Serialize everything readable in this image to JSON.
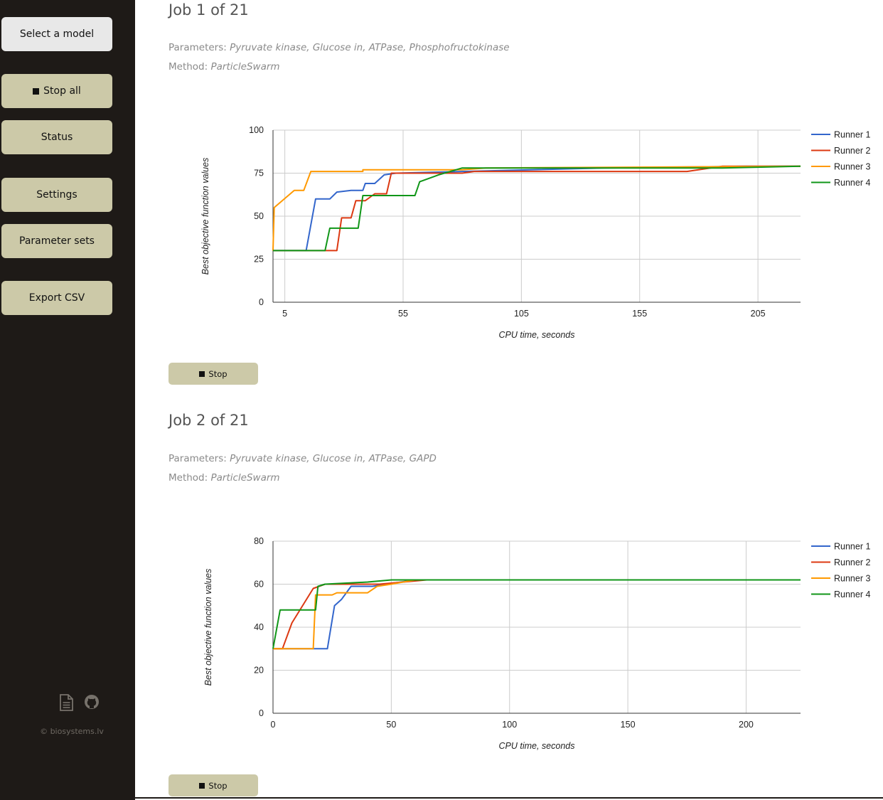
{
  "sidebar": {
    "select_model": "Select a model",
    "stop_all": "Stop all",
    "status": "Status",
    "settings": "Settings",
    "parameter_sets": "Parameter sets",
    "export_csv": "Export CSV",
    "icons": [
      "document-icon",
      "github-icon"
    ],
    "copyright": "© biosystems.lv"
  },
  "jobs": [
    {
      "title": "Job 1 of 21",
      "parameters_label": "Parameters:",
      "parameters": "Pyruvate kinase, Glucose in, ATPase, Phosphofructokinase",
      "method_label": "Method:",
      "method": "ParticleSwarm",
      "stop_label": "Stop"
    },
    {
      "title": "Job 2 of 21",
      "parameters_label": "Parameters:",
      "parameters": "Pyruvate kinase, Glucose in, ATPase, GAPD",
      "method_label": "Method:",
      "method": "ParticleSwarm",
      "stop_label": "Stop"
    }
  ],
  "chart_data": [
    {
      "type": "line",
      "xlabel": "CPU time, seconds",
      "ylabel": "Best objective function values",
      "xlim": [
        0,
        223
      ],
      "ylim": [
        0,
        100
      ],
      "xticks": [
        5,
        55,
        105,
        155,
        205
      ],
      "yticks": [
        0,
        25,
        50,
        75,
        100
      ],
      "grid": true,
      "legend": "right",
      "series": [
        {
          "name": "Runner 1",
          "color": "#3366cc",
          "points": [
            [
              0,
              30
            ],
            [
              14,
              30
            ],
            [
              18,
              60
            ],
            [
              24,
              60
            ],
            [
              27,
              64
            ],
            [
              33,
              65
            ],
            [
              38,
              65
            ],
            [
              39,
              69
            ],
            [
              43,
              69
            ],
            [
              47,
              74
            ],
            [
              52,
              75
            ],
            [
              80,
              76
            ],
            [
              140,
              78
            ],
            [
              200,
              79
            ],
            [
              223,
              79
            ]
          ]
        },
        {
          "name": "Runner 2",
          "color": "#dc3912",
          "points": [
            [
              0,
              30
            ],
            [
              27,
              30
            ],
            [
              29,
              49
            ],
            [
              33,
              49
            ],
            [
              35,
              59
            ],
            [
              39,
              59
            ],
            [
              43,
              63
            ],
            [
              48,
              63
            ],
            [
              50,
              75
            ],
            [
              80,
              75
            ],
            [
              85,
              76
            ],
            [
              175,
              76
            ],
            [
              190,
              79
            ],
            [
              223,
              79
            ]
          ]
        },
        {
          "name": "Runner 3",
          "color": "#ff9900",
          "points": [
            [
              0,
              30
            ],
            [
              0.5,
              55
            ],
            [
              9,
              65
            ],
            [
              13,
              65
            ],
            [
              16,
              76
            ],
            [
              38,
              76
            ],
            [
              38,
              77
            ],
            [
              80,
              77
            ],
            [
              90,
              78
            ],
            [
              223,
              79
            ]
          ]
        },
        {
          "name": "Runner 4",
          "color": "#109618",
          "points": [
            [
              0,
              30
            ],
            [
              22,
              30
            ],
            [
              24,
              43
            ],
            [
              36,
              43
            ],
            [
              38,
              62
            ],
            [
              60,
              62
            ],
            [
              61,
              66
            ],
            [
              62,
              70
            ],
            [
              70,
              74
            ],
            [
              80,
              78
            ],
            [
              190,
              78
            ],
            [
              223,
              79
            ]
          ]
        }
      ]
    },
    {
      "type": "line",
      "xlabel": "CPU time, seconds",
      "ylabel": "Best objective function values",
      "xlim": [
        0,
        223
      ],
      "ylim": [
        0,
        80
      ],
      "xticks": [
        0,
        50,
        100,
        150,
        200
      ],
      "yticks": [
        0,
        20,
        40,
        60,
        80
      ],
      "grid": true,
      "legend": "right",
      "series": [
        {
          "name": "Runner 1",
          "color": "#3366cc",
          "points": [
            [
              0,
              30
            ],
            [
              23,
              30
            ],
            [
              26,
              50
            ],
            [
              29,
              53
            ],
            [
              33,
              59
            ],
            [
              42,
              59
            ],
            [
              48,
              60
            ],
            [
              60,
              62
            ],
            [
              223,
              62
            ]
          ]
        },
        {
          "name": "Runner 2",
          "color": "#dc3912",
          "points": [
            [
              0,
              30
            ],
            [
              4,
              30
            ],
            [
              8,
              42
            ],
            [
              17,
              58
            ],
            [
              22,
              60
            ],
            [
              45,
              60
            ],
            [
              55,
              61
            ],
            [
              65,
              62
            ],
            [
              223,
              62
            ]
          ]
        },
        {
          "name": "Runner 3",
          "color": "#ff9900",
          "points": [
            [
              0,
              30
            ],
            [
              17,
              30
            ],
            [
              18,
              55
            ],
            [
              25,
              55
            ],
            [
              27,
              56
            ],
            [
              40,
              56
            ],
            [
              44,
              59
            ],
            [
              50,
              60
            ],
            [
              60,
              62
            ],
            [
              223,
              62
            ]
          ]
        },
        {
          "name": "Runner 4",
          "color": "#109618",
          "points": [
            [
              0,
              30
            ],
            [
              3,
              48
            ],
            [
              18,
              48
            ],
            [
              19,
              59
            ],
            [
              22,
              60
            ],
            [
              40,
              61
            ],
            [
              50,
              62
            ],
            [
              223,
              62
            ]
          ]
        }
      ]
    }
  ]
}
